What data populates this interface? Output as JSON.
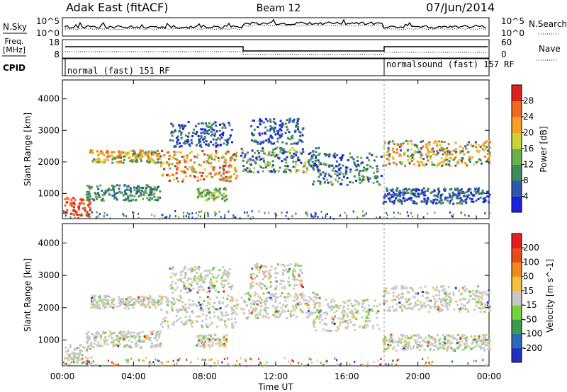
{
  "header": {
    "station": "Adak East (fitACF)",
    "beam": "Beam 12",
    "date": "07/Jun/2014"
  },
  "panels": {
    "nsky": {
      "label": "N.Sky",
      "right_label": "N.Search",
      "tick_top": "10^5",
      "tick_bottom": "10^0"
    },
    "freq": {
      "label_line1": "Freq.",
      "label_line2": "[MHz]",
      "right_label": "Nave",
      "ticks_left": [
        "18",
        "8"
      ],
      "ticks_right": [
        "60",
        "0"
      ]
    },
    "cpid": {
      "label": "CPID",
      "segments": [
        "normal (fast) 151 RF",
        "normalsound (fast) 157 RF"
      ]
    }
  },
  "chart_data": [
    {
      "type": "heatmap",
      "name": "power",
      "ylabel": "Slant Range [km]",
      "yticks": [
        "1000",
        "2000",
        "3000",
        "4000"
      ],
      "ylim": [
        200,
        4600
      ],
      "colorbar": {
        "label": "Power [dB]",
        "ticks": [
          "4",
          "8",
          "12",
          "16",
          "20",
          "24",
          "28"
        ],
        "colors": [
          "#1f1fe0",
          "#2d5aa8",
          "#3f8a5a",
          "#6ab04c",
          "#c8d43c",
          "#f5a020",
          "#ee6a1c",
          "#e02020"
        ]
      }
    },
    {
      "type": "heatmap",
      "name": "velocity",
      "ylabel": "Slant Range [km]",
      "yticks": [
        "1000",
        "2000",
        "3000",
        "4000"
      ],
      "ylim": [
        200,
        4600
      ],
      "colorbar": {
        "label": "Velocity [m s^-1]",
        "ticks": [
          "200",
          "100",
          "50",
          "15",
          "-15",
          "-50",
          "-100",
          "-200"
        ],
        "colors": [
          "#2030c0",
          "#2a6ab0",
          "#3e9a4a",
          "#78d040",
          "#c8c8c8",
          "#f5c040",
          "#f08a20",
          "#e84a20",
          "#e02020"
        ]
      }
    }
  ],
  "xaxis": {
    "label": "Time UT",
    "ticks": [
      "00:00",
      "04:00",
      "08:00",
      "12:00",
      "16:00",
      "20:00",
      "00:00"
    ]
  }
}
